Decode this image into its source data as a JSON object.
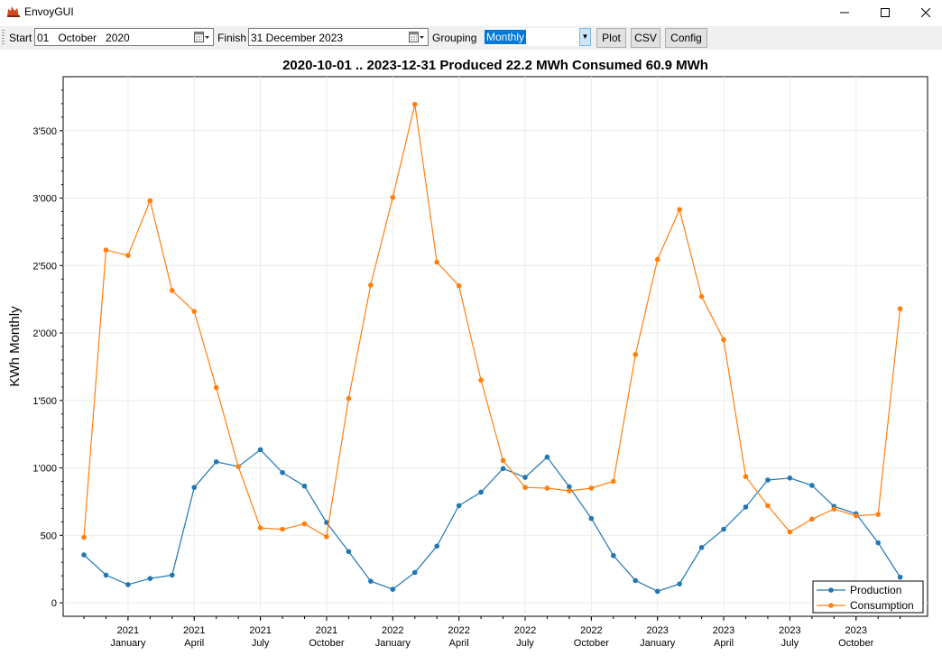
{
  "window": {
    "title": "EnvoyGUI",
    "minimize": "—",
    "maximize": "☐",
    "close": "✕"
  },
  "toolbar": {
    "start_label": "Start",
    "start_value": "01   October   2020",
    "finish_label": "Finish",
    "finish_value": "31 December 2023",
    "grouping_label": "Grouping",
    "grouping_value": "Monthly",
    "plot_label": "Plot",
    "csv_label": "CSV",
    "config_label": "Config"
  },
  "chart_data": {
    "type": "line",
    "title": "2020-10-01 .. 2023-12-31 Produced 22.2 MWh Consumed 60.9 MWh",
    "xlabel": "",
    "ylabel": "KWh Monthly",
    "ylim": [
      -100,
      3900
    ],
    "yticks": [
      0,
      500,
      1000,
      1500,
      2000,
      2500,
      3000,
      3500
    ],
    "ytick_labels": [
      "0",
      "500",
      "1'000",
      "1'500",
      "2'000",
      "2'500",
      "3'000",
      "3'500"
    ],
    "xticks": [
      {
        "index": 2,
        "year": "2021",
        "month": "January"
      },
      {
        "index": 5,
        "year": "2021",
        "month": "April"
      },
      {
        "index": 8,
        "year": "2021",
        "month": "July"
      },
      {
        "index": 11,
        "year": "2021",
        "month": "October"
      },
      {
        "index": 14,
        "year": "2022",
        "month": "January"
      },
      {
        "index": 17,
        "year": "2022",
        "month": "April"
      },
      {
        "index": 20,
        "year": "2022",
        "month": "July"
      },
      {
        "index": 23,
        "year": "2022",
        "month": "October"
      },
      {
        "index": 26,
        "year": "2023",
        "month": "January"
      },
      {
        "index": 29,
        "year": "2023",
        "month": "April"
      },
      {
        "index": 32,
        "year": "2023",
        "month": "July"
      },
      {
        "index": 35,
        "year": "2023",
        "month": "October"
      }
    ],
    "legend_position": "bottom-right",
    "series": [
      {
        "name": "Production",
        "color": "#1f77b4",
        "values": [
          355,
          205,
          135,
          180,
          205,
          855,
          1045,
          1010,
          1135,
          965,
          865,
          595,
          380,
          160,
          100,
          225,
          420,
          720,
          820,
          995,
          930,
          1080,
          860,
          625,
          350,
          165,
          85,
          140,
          410,
          545,
          710,
          910,
          925,
          870,
          715,
          660,
          445,
          190
        ]
      },
      {
        "name": "Consumption",
        "color": "#ff7f0e",
        "values": [
          485,
          2615,
          2575,
          2980,
          2315,
          2160,
          1595,
          1010,
          555,
          545,
          585,
          490,
          1515,
          2355,
          3005,
          3695,
          2525,
          2350,
          1650,
          1055,
          855,
          850,
          830,
          850,
          900,
          1840,
          2545,
          2915,
          2270,
          1950,
          935,
          720,
          525,
          620,
          695,
          645,
          655,
          2180
        ]
      }
    ]
  }
}
